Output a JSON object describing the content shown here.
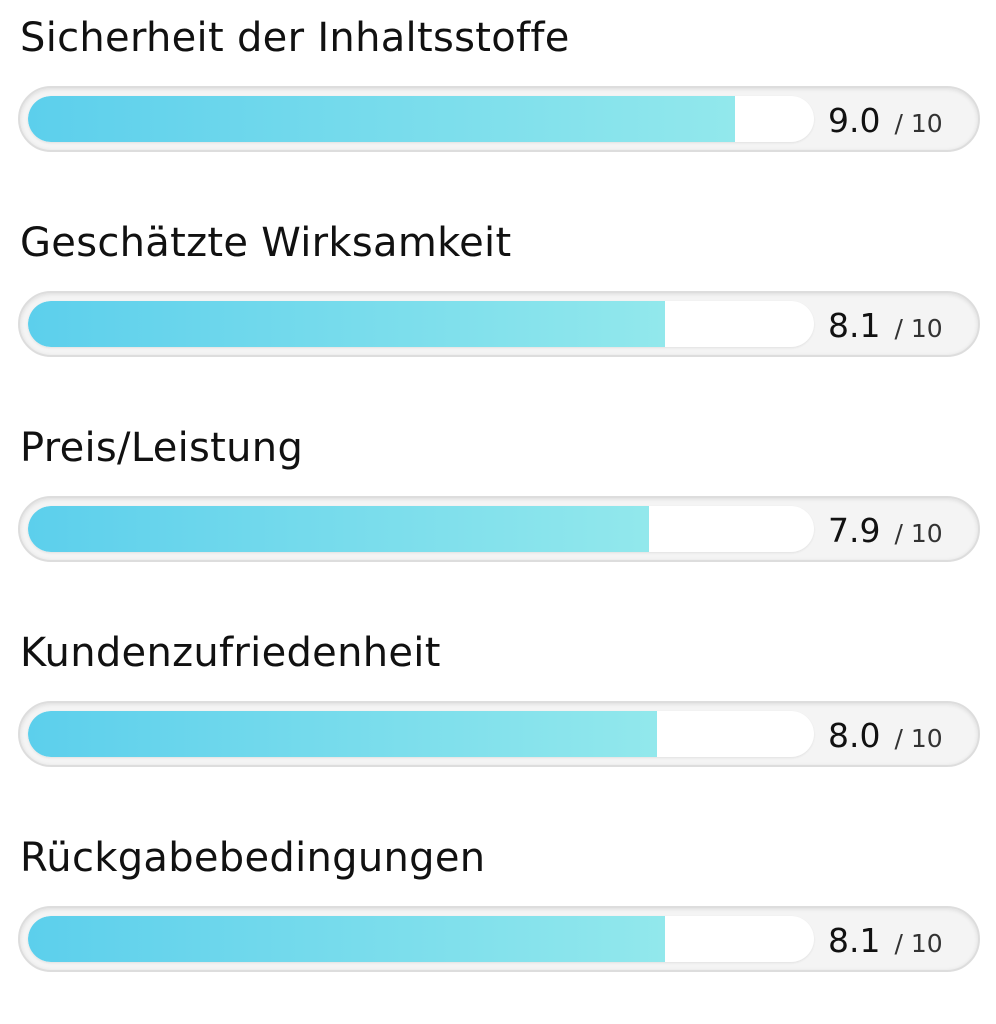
{
  "ratings": [
    {
      "label": "Sicherheit der Inhaltsstoffe",
      "score": "9.0",
      "max": "/ 10",
      "value": 9.0
    },
    {
      "label": "Geschätzte Wirksamkeit",
      "score": "8.1",
      "max": "/ 10",
      "value": 8.1
    },
    {
      "label": "Preis/Leistung",
      "score": "7.9",
      "max": "/ 10",
      "value": 7.9
    },
    {
      "label": "Kundenzufriedenheit",
      "score": "8.0",
      "max": "/ 10",
      "value": 8.0
    },
    {
      "label": "Rückgabebedingungen",
      "score": "8.1",
      "max": "/ 10",
      "value": 8.1
    }
  ],
  "colors": {
    "fill_start": "#5ccfec",
    "fill_end": "#92e8ec",
    "track": "#f4f4f4",
    "text": "#111111"
  }
}
